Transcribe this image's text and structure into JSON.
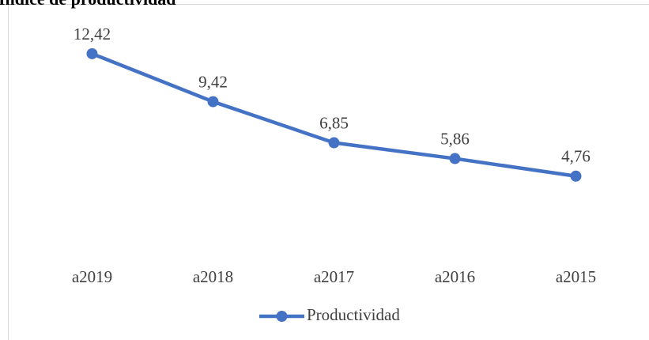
{
  "chart_data": {
    "type": "line",
    "title": "Índice de productividad",
    "categories": [
      "a2019",
      "a2018",
      "a2017",
      "a2016",
      "a2015"
    ],
    "series": [
      {
        "name": "Productividad",
        "color": "#4472c4",
        "values": [
          12.42,
          9.42,
          6.85,
          5.86,
          4.76
        ],
        "value_labels": [
          "12,42",
          "9,42",
          "6,85",
          "5,86",
          "4,76"
        ]
      }
    ],
    "ylim": [
      0,
      14
    ],
    "legend": "bottom"
  }
}
